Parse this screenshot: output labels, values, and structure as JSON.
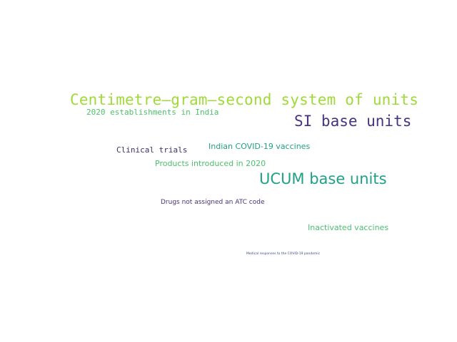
{
  "word_cloud": {
    "words": [
      {
        "text": "Centimetre–gram–second system of units",
        "color": "#a0da39"
      },
      {
        "text": "2020 establishments in India",
        "color": "#4ac16d"
      },
      {
        "text": "SI base units",
        "color": "#46327e"
      },
      {
        "text": "Indian COVID-19 vaccines",
        "color": "#1fa187"
      },
      {
        "text": "Clinical trials",
        "color": "#3b2f6b"
      },
      {
        "text": "Products introduced in 2020",
        "color": "#4ac16d"
      },
      {
        "text": "UCUM base units",
        "color": "#1fa187"
      },
      {
        "text": "Drugs not assigned an ATC code",
        "color": "#46327e"
      },
      {
        "text": "Inactivated vaccines",
        "color": "#4ac16d"
      },
      {
        "text": "Medical responses to the COVID-19 pandemic",
        "color": "#3b4c8a"
      }
    ]
  }
}
